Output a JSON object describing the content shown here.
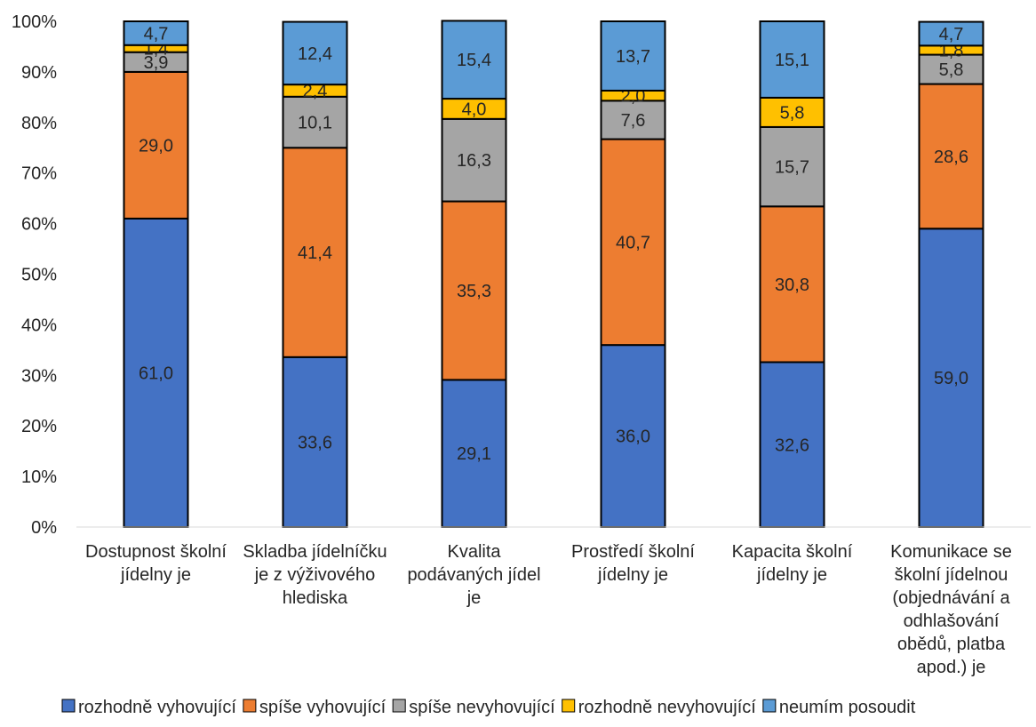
{
  "chart_data": {
    "type": "bar",
    "stacked": true,
    "percent": true,
    "title": "",
    "xlabel": "",
    "ylabel": "",
    "ylim": [
      0,
      100
    ],
    "y_ticks": [
      "0%",
      "10%",
      "20%",
      "30%",
      "40%",
      "50%",
      "60%",
      "70%",
      "80%",
      "90%",
      "100%"
    ],
    "grid": false,
    "legend_position": "bottom",
    "categories": [
      [
        "Dostupnost školní",
        "jídelny je"
      ],
      [
        "Skladba jídelníčku",
        "je z výživového",
        "hlediska"
      ],
      [
        "Kvalita",
        "podávaných jídel",
        "je"
      ],
      [
        "Prostředí školní",
        "jídelny je"
      ],
      [
        "Kapacita školní",
        "jídelny je"
      ],
      [
        "Komunikace se",
        "školní jídelnou",
        "(objednávání a",
        "odhlašování",
        "obědů, platba",
        "apod.) je"
      ]
    ],
    "series": [
      {
        "name": "rozhodně vyhovující",
        "color": "#4472C4",
        "values": [
          61.0,
          33.6,
          29.1,
          36.0,
          32.6,
          59.0
        ],
        "labels": [
          "61,0",
          "33,6",
          "29,1",
          "36,0",
          "32,6",
          "59,0"
        ]
      },
      {
        "name": "spíše vyhovující",
        "color": "#ED7D31",
        "values": [
          29.0,
          41.4,
          35.3,
          40.7,
          30.8,
          28.6
        ],
        "labels": [
          "29,0",
          "41,4",
          "35,3",
          "40,7",
          "30,8",
          "28,6"
        ]
      },
      {
        "name": "spíše nevyhovující",
        "color": "#A5A5A5",
        "values": [
          3.9,
          10.1,
          16.3,
          7.6,
          15.7,
          5.8
        ],
        "labels": [
          "3,9",
          "10,1",
          "16,3",
          "7,6",
          "15,7",
          "5,8"
        ]
      },
      {
        "name": "rozhodně nevyhovující",
        "color": "#FFC000",
        "values": [
          1.4,
          2.4,
          4.0,
          2.0,
          5.8,
          1.8
        ],
        "labels": [
          "1,4",
          "2,4",
          "4,0",
          "2,0",
          "5,8",
          "1,8"
        ]
      },
      {
        "name": "neumím posoudit",
        "color": "#5B9BD5",
        "values": [
          4.7,
          12.4,
          15.4,
          13.7,
          15.1,
          4.7
        ],
        "labels": [
          "4,7",
          "12,4",
          "15,4",
          "13,7",
          "15,1",
          "4,7"
        ]
      }
    ]
  }
}
